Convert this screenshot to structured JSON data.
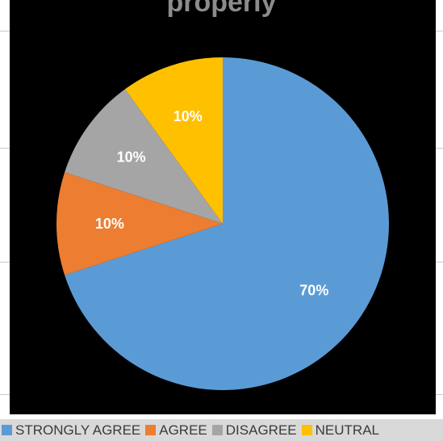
{
  "chart_data": {
    "type": "pie",
    "title": "properly",
    "slices": [
      {
        "label": "STRONGLY AGREE",
        "value": 70,
        "display": "70%",
        "color": "#5b9bd5"
      },
      {
        "label": "AGREE",
        "value": 10,
        "display": "10%",
        "color": "#ed7d31"
      },
      {
        "label": "DISAGREE",
        "value": 10,
        "display": "10%",
        "color": "#a5a5a5"
      },
      {
        "label": "NEUTRAL",
        "value": 10,
        "display": "10%",
        "color": "#ffc000"
      }
    ],
    "legend_position": "bottom"
  }
}
